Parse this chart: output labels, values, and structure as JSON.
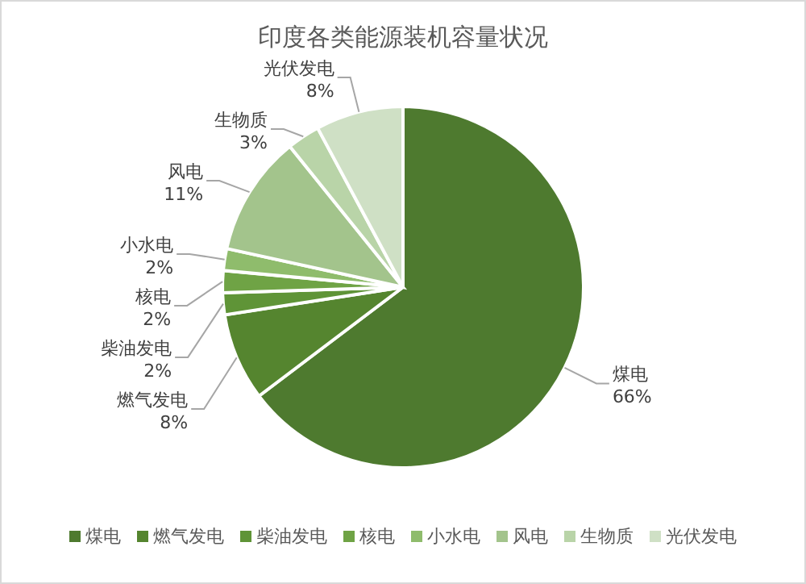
{
  "chart_data": {
    "type": "pie",
    "title": "印度各类能源装机容量状况",
    "categories": [
      "煤电",
      "燃气发电",
      "柴油发电",
      "核电",
      "小水电",
      "风电",
      "生物质",
      "光伏发电"
    ],
    "values": [
      66,
      8,
      2,
      2,
      2,
      11,
      3,
      8
    ],
    "colors": [
      "#4e7a2f",
      "#55852f",
      "#5f9437",
      "#6fa345",
      "#8fbc6c",
      "#a3c48c",
      "#b9d4a8",
      "#cfe0c5"
    ],
    "value_labels": [
      "66%",
      "8%",
      "2%",
      "2%",
      "2%",
      "11%",
      "3%",
      "8%"
    ],
    "legend": "bottom"
  }
}
